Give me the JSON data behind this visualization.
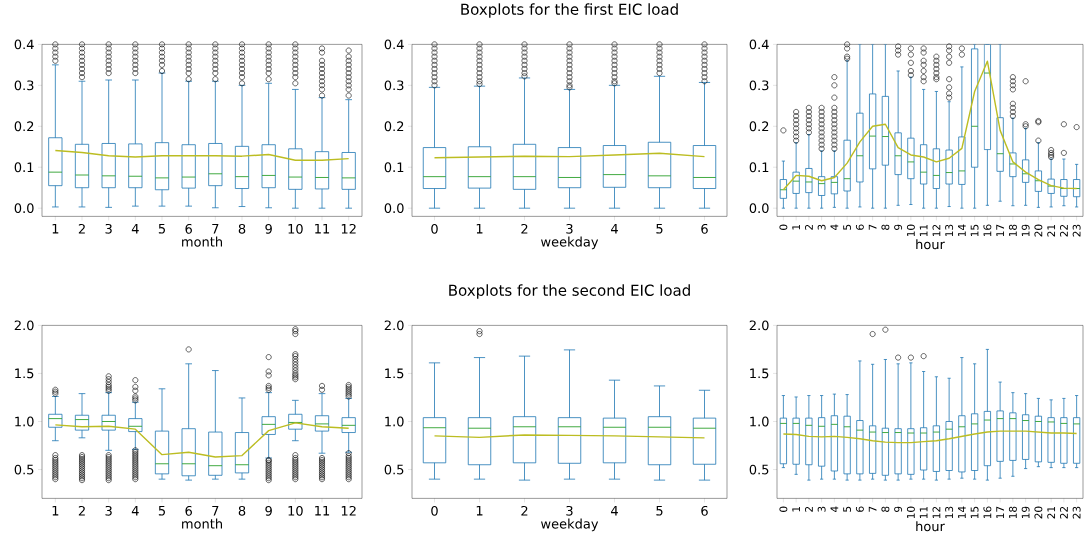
{
  "chart_data": [
    {
      "type": "box",
      "xlabel": "month",
      "categories": [
        "1",
        "2",
        "3",
        "4",
        "5",
        "6",
        "7",
        "8",
        "9",
        "10",
        "11",
        "12"
      ],
      "ylim": [
        -0.02,
        0.4
      ],
      "yticks": [
        {
          "value": 0,
          "label": "0.0"
        },
        {
          "value": 0.1,
          "label": "0.1"
        },
        {
          "value": 0.2,
          "label": "0.2"
        },
        {
          "value": 0.3,
          "label": "0.3"
        },
        {
          "value": 0.4,
          "label": "0.4"
        }
      ],
      "series": [
        {
          "color": "#1f77b4",
          "boxes": [
            {
              "low": 0.003,
              "q1": 0.055,
              "median": 0.088,
              "q3": 0.172,
              "high": 0.35,
              "outliers": [
                0.36,
                0.37,
                0.38,
                0.39,
                0.4
              ]
            },
            {
              "low": 0.003,
              "q1": 0.05,
              "median": 0.081,
              "q3": 0.156,
              "high": 0.31,
              "outliers": [
                0.32,
                0.33,
                0.34,
                0.35,
                0.36,
                0.37,
                0.38,
                0.39,
                0.4
              ]
            },
            {
              "low": 0.002,
              "q1": 0.05,
              "median": 0.079,
              "q3": 0.158,
              "high": 0.313,
              "outliers": [
                0.33,
                0.34,
                0.35,
                0.36,
                0.37,
                0.38,
                0.39,
                0.4
              ]
            },
            {
              "low": 0.005,
              "q1": 0.05,
              "median": 0.078,
              "q3": 0.157,
              "high": 0.313,
              "outliers": [
                0.33,
                0.34,
                0.35,
                0.36,
                0.37,
                0.38,
                0.39,
                0.4
              ]
            },
            {
              "low": 0.005,
              "q1": 0.045,
              "median": 0.074,
              "q3": 0.16,
              "high": 0.33,
              "outliers": [
                0.335,
                0.35,
                0.36,
                0.37,
                0.38,
                0.39,
                0.4
              ]
            },
            {
              "low": 0.005,
              "q1": 0.049,
              "median": 0.076,
              "q3": 0.155,
              "high": 0.31,
              "outliers": [
                0.315,
                0.33,
                0.34,
                0.35,
                0.36,
                0.37,
                0.38,
                0.39,
                0.4
              ]
            },
            {
              "low": 0.001,
              "q1": 0.055,
              "median": 0.084,
              "q3": 0.158,
              "high": 0.31,
              "outliers": [
                0.315,
                0.33,
                0.34,
                0.35,
                0.36,
                0.37,
                0.38,
                0.39,
                0.4
              ]
            },
            {
              "low": 0.004,
              "q1": 0.048,
              "median": 0.077,
              "q3": 0.151,
              "high": 0.3,
              "outliers": [
                0.305,
                0.32,
                0.33,
                0.34,
                0.35,
                0.36,
                0.37,
                0.38,
                0.39,
                0.4
              ]
            },
            {
              "low": 0.001,
              "q1": 0.05,
              "median": 0.08,
              "q3": 0.155,
              "high": 0.305,
              "outliers": [
                0.315,
                0.33,
                0.34,
                0.35,
                0.36,
                0.37,
                0.38,
                0.39,
                0.4
              ]
            },
            {
              "low": 0,
              "q1": 0.046,
              "median": 0.076,
              "q3": 0.145,
              "high": 0.29,
              "outliers": [
                0.305,
                0.32,
                0.33,
                0.34,
                0.35,
                0.36,
                0.37,
                0.38,
                0.39,
                0.4
              ]
            },
            {
              "low": 0,
              "q1": 0.047,
              "median": 0.075,
              "q3": 0.138,
              "high": 0.27,
              "outliers": [
                0.275,
                0.29,
                0.3,
                0.31,
                0.32,
                0.33,
                0.34,
                0.35,
                0.36,
                0.38,
                0.39
              ]
            },
            {
              "low": 0,
              "q1": 0.046,
              "median": 0.074,
              "q3": 0.136,
              "high": 0.265,
              "outliers": [
                0.275,
                0.29,
                0.3,
                0.31,
                0.32,
                0.33,
                0.34,
                0.35,
                0.36,
                0.37,
                0.385
              ]
            }
          ]
        },
        {
          "type": "line",
          "color": "#bcbd22",
          "values": [
            0.141,
            0.136,
            0.128,
            0.125,
            0.128,
            0.128,
            0.128,
            0.127,
            0.131,
            0.117,
            0.117,
            0.121
          ]
        }
      ]
    },
    {
      "type": "box",
      "title": "Boxplots for the first EIC load",
      "xlabel": "weekday",
      "categories": [
        "0",
        "1",
        "2",
        "3",
        "4",
        "5",
        "6"
      ],
      "ylim": [
        -0.02,
        0.4
      ],
      "yticks": [
        {
          "value": 0,
          "label": "0.0"
        },
        {
          "value": 0.1,
          "label": "0.1"
        },
        {
          "value": 0.2,
          "label": "0.2"
        },
        {
          "value": 0.3,
          "label": "0.3"
        },
        {
          "value": 0.4,
          "label": "0.4"
        }
      ],
      "series": [
        {
          "color": "#1f77b4",
          "boxes": [
            {
              "low": 0,
              "q1": 0.048,
              "median": 0.077,
              "q3": 0.148,
              "high": 0.295,
              "outliers": [
                0.3,
                0.31,
                0.32,
                0.33,
                0.34,
                0.35,
                0.36,
                0.37,
                0.38,
                0.39,
                0.4
              ]
            },
            {
              "low": 0,
              "q1": 0.049,
              "median": 0.077,
              "q3": 0.15,
              "high": 0.298,
              "outliers": [
                0.303,
                0.31,
                0.32,
                0.33,
                0.34,
                0.35,
                0.36,
                0.37,
                0.38,
                0.39,
                0.4
              ]
            },
            {
              "low": 0,
              "q1": 0.046,
              "median": 0.077,
              "q3": 0.156,
              "high": 0.318,
              "outliers": [
                0.322,
                0.33,
                0.34,
                0.35,
                0.36,
                0.37,
                0.38,
                0.39,
                0.4
              ]
            },
            {
              "low": 0,
              "q1": 0.05,
              "median": 0.075,
              "q3": 0.148,
              "high": 0.29,
              "outliers": [
                0.295,
                0.3,
                0.31,
                0.32,
                0.33,
                0.34,
                0.35,
                0.36,
                0.37,
                0.38,
                0.39,
                0.4
              ]
            },
            {
              "low": 0,
              "q1": 0.051,
              "median": 0.082,
              "q3": 0.153,
              "high": 0.3,
              "outliers": [
                0.305,
                0.31,
                0.32,
                0.33,
                0.34,
                0.35,
                0.36,
                0.37,
                0.38,
                0.39,
                0.4
              ]
            },
            {
              "low": 0,
              "q1": 0.05,
              "median": 0.079,
              "q3": 0.161,
              "high": 0.322,
              "outliers": [
                0.33,
                0.34,
                0.35,
                0.36,
                0.37,
                0.38,
                0.39,
                0.4
              ]
            },
            {
              "low": 0,
              "q1": 0.048,
              "median": 0.075,
              "q3": 0.153,
              "high": 0.307,
              "outliers": [
                0.31,
                0.32,
                0.33,
                0.34,
                0.35,
                0.36,
                0.37,
                0.38,
                0.39,
                0.4
              ]
            }
          ]
        },
        {
          "type": "line",
          "color": "#bcbd22",
          "values": [
            0.123,
            0.125,
            0.127,
            0.126,
            0.13,
            0.134,
            0.126
          ]
        }
      ]
    },
    {
      "type": "box",
      "xlabel": "hour",
      "categories": [
        "0",
        "1",
        "2",
        "3",
        "4",
        "5",
        "6",
        "7",
        "8",
        "9",
        "10",
        "11",
        "12",
        "13",
        "14",
        "15",
        "16",
        "17",
        "18",
        "19",
        "20",
        "21",
        "22",
        "23"
      ],
      "ylim": [
        -0.02,
        0.4
      ],
      "yticks": [
        {
          "value": 0,
          "label": "0.0"
        },
        {
          "value": 0.1,
          "label": "0.1"
        },
        {
          "value": 0.2,
          "label": "0.2"
        },
        {
          "value": 0.3,
          "label": "0.3"
        },
        {
          "value": 0.4,
          "label": "0.4"
        }
      ],
      "series": [
        {
          "color": "#1f77b4",
          "boxes": [
            {
              "low": 0,
              "q1": 0.024,
              "median": 0.045,
              "q3": 0.07,
              "high": 0.115,
              "outliers": [
                0.19
              ]
            },
            {
              "low": 0,
              "q1": 0.036,
              "median": 0.066,
              "q3": 0.088,
              "high": 0.16,
              "outliers": [
                0.165,
                0.175,
                0.185,
                0.195,
                0.205,
                0.215,
                0.225,
                0.235
              ]
            },
            {
              "low": 0,
              "q1": 0.038,
              "median": 0.064,
              "q3": 0.097,
              "high": 0.18,
              "outliers": [
                0.185,
                0.195,
                0.205,
                0.215,
                0.225,
                0.235,
                0.245
              ]
            },
            {
              "low": 0,
              "q1": 0.031,
              "median": 0.06,
              "q3": 0.077,
              "high": 0.14,
              "outliers": [
                0.145,
                0.155,
                0.165,
                0.175,
                0.185,
                0.195,
                0.205,
                0.215,
                0.225,
                0.235,
                0.245
              ]
            },
            {
              "low": 0.002,
              "q1": 0.035,
              "median": 0.063,
              "q3": 0.077,
              "high": 0.14,
              "outliers": [
                0.145,
                0.155,
                0.165,
                0.175,
                0.185,
                0.195,
                0.205,
                0.215,
                0.225,
                0.235,
                0.245,
                0.27,
                0.3,
                0.32
              ]
            },
            {
              "low": 0,
              "q1": 0.042,
              "median": 0.072,
              "q3": 0.166,
              "high": 0.36,
              "outliers": [
                0.365,
                0.37,
                0.39,
                0.4
              ]
            },
            {
              "low": 0.003,
              "q1": 0.064,
              "median": 0.128,
              "q3": 0.232,
              "high": 0.4
            },
            {
              "low": 0,
              "q1": 0.096,
              "median": 0.176,
              "q3": 0.279,
              "high": 0.4
            },
            {
              "low": 0,
              "q1": 0.105,
              "median": 0.175,
              "q3": 0.273,
              "high": 0.4
            },
            {
              "low": 0.007,
              "q1": 0.082,
              "median": 0.128,
              "q3": 0.184,
              "high": 0.335,
              "outliers": [
                0.375,
                0.385,
                0.395
              ]
            },
            {
              "low": 0.009,
              "q1": 0.072,
              "median": 0.113,
              "q3": 0.171,
              "high": 0.32,
              "outliers": [
                0.325,
                0.335,
                0.355,
                0.375,
                0.39
              ]
            },
            {
              "low": 0,
              "q1": 0.059,
              "median": 0.088,
              "q3": 0.155,
              "high": 0.29,
              "outliers": [
                0.31,
                0.32,
                0.335,
                0.35,
                0.36,
                0.38,
                0.39
              ]
            },
            {
              "low": 0,
              "q1": 0.048,
              "median": 0.08,
              "q3": 0.145,
              "high": 0.285,
              "outliers": [
                0.315,
                0.32,
                0.33,
                0.34,
                0.35,
                0.36,
                0.37
              ]
            },
            {
              "low": 0.004,
              "q1": 0.059,
              "median": 0.087,
              "q3": 0.142,
              "high": 0.26,
              "outliers": [
                0.27,
                0.28,
                0.295,
                0.315,
                0.355,
                0.37,
                0.385,
                0.395
              ]
            },
            {
              "low": 0,
              "q1": 0.058,
              "median": 0.091,
              "q3": 0.174,
              "high": 0.345,
              "outliers": [
                0.375,
                0.39
              ]
            },
            {
              "low": 0,
              "q1": 0.1,
              "median": 0.2,
              "q3": 0.389,
              "high": 0.4
            },
            {
              "low": 0.007,
              "q1": 0.143,
              "median": 0.33,
              "q3": 0.4,
              "high": 0.4
            },
            {
              "low": 0.017,
              "q1": 0.09,
              "median": 0.133,
              "q3": 0.221,
              "high": 0.4
            },
            {
              "low": 0.006,
              "q1": 0.077,
              "median": 0.108,
              "q3": 0.135,
              "high": 0.22,
              "outliers": [
                0.225,
                0.235,
                0.245,
                0.255,
                0.29,
                0.3,
                0.31,
                0.32
              ]
            },
            {
              "low": 0.007,
              "q1": 0.063,
              "median": 0.084,
              "q3": 0.118,
              "high": 0.195,
              "outliers": [
                0.2,
                0.205,
                0.31
              ]
            },
            {
              "low": 0.002,
              "q1": 0.041,
              "median": 0.067,
              "q3": 0.091,
              "high": 0.16,
              "outliers": [
                0.165,
                0.21,
                0.213
              ]
            },
            {
              "low": 0.003,
              "q1": 0.036,
              "median": 0.054,
              "q3": 0.071,
              "high": 0.12,
              "outliers": [
                0.125,
                0.13,
                0.135,
                0.142
              ]
            },
            {
              "low": 0.006,
              "q1": 0.029,
              "median": 0.048,
              "q3": 0.07,
              "high": 0.12,
              "outliers": [
                0.135,
                0.205
              ]
            },
            {
              "low": 0.003,
              "q1": 0.028,
              "median": 0.048,
              "q3": 0.07,
              "high": 0.107,
              "outliers": [
                0.198
              ]
            }
          ]
        },
        {
          "type": "line",
          "color": "#bcbd22",
          "values": [
            0.045,
            0.08,
            0.078,
            0.067,
            0.075,
            0.11,
            0.162,
            0.2,
            0.205,
            0.148,
            0.13,
            0.125,
            0.113,
            0.122,
            0.146,
            0.285,
            0.359,
            0.19,
            0.113,
            0.088,
            0.07,
            0.055,
            0.049,
            0.048
          ]
        }
      ]
    },
    {
      "type": "box",
      "xlabel": "month",
      "categories": [
        "1",
        "2",
        "3",
        "4",
        "5",
        "6",
        "7",
        "8",
        "9",
        "10",
        "11",
        "12"
      ],
      "ylim": [
        0.2,
        2.0
      ],
      "yticks": [
        {
          "value": 0.5,
          "label": "0.5"
        },
        {
          "value": 1.0,
          "label": "1.0"
        },
        {
          "value": 1.5,
          "label": "1.5"
        },
        {
          "value": 2.0,
          "label": "2.0"
        }
      ],
      "series": [
        {
          "color": "#1f77b4",
          "boxes": [
            {
              "low": 0.8,
              "q1": 0.94,
              "median": 1.03,
              "q3": 1.075,
              "high": 1.26,
              "outliers": [
                0.4,
                0.42,
                0.44,
                0.46,
                0.48,
                0.5,
                0.52,
                0.54,
                0.56,
                0.58,
                0.6,
                0.62,
                0.65,
                1.29,
                1.31,
                1.33
              ]
            },
            {
              "low": 0.83,
              "q1": 0.91,
              "median": 1.02,
              "q3": 1.065,
              "high": 1.29,
              "outliers": [
                0.39,
                0.41,
                0.43,
                0.45,
                0.47,
                0.49,
                0.51,
                0.53,
                0.55,
                0.57,
                0.59,
                0.61,
                0.63,
                0.65
              ]
            },
            {
              "low": 0.7,
              "q1": 0.91,
              "median": 1.0,
              "q3": 1.065,
              "high": 1.3,
              "outliers": [
                0.39,
                0.41,
                0.43,
                0.45,
                0.47,
                0.49,
                0.51,
                0.53,
                0.55,
                0.57,
                0.59,
                0.61,
                0.63,
                0.65,
                1.32,
                1.34,
                1.36,
                1.38,
                1.41,
                1.44,
                1.47
              ]
            },
            {
              "low": 0.71,
              "q1": 0.895,
              "median": 0.95,
              "q3": 1.03,
              "high": 1.2,
              "outliers": [
                0.4,
                0.42,
                0.44,
                0.46,
                0.48,
                0.5,
                0.52,
                0.54,
                0.56,
                0.58,
                0.6,
                0.62,
                0.64,
                0.66,
                0.68,
                0.7,
                1.22,
                1.24,
                1.26,
                1.32,
                1.36,
                1.43
              ]
            },
            {
              "low": 0.4,
              "q1": 0.455,
              "median": 0.56,
              "q3": 0.9,
              "high": 1.34
            },
            {
              "low": 0.39,
              "q1": 0.435,
              "median": 0.56,
              "q3": 0.925,
              "high": 1.6,
              "outliers": [
                1.75
              ]
            },
            {
              "low": 0.4,
              "q1": 0.44,
              "median": 0.54,
              "q3": 0.89,
              "high": 1.53
            },
            {
              "low": 0.4,
              "q1": 0.465,
              "median": 0.55,
              "q3": 0.885,
              "high": 1.245
            },
            {
              "low": 0.62,
              "q1": 0.865,
              "median": 0.97,
              "q3": 1.05,
              "high": 1.3,
              "outliers": [
                0.39,
                0.41,
                0.43,
                0.45,
                0.47,
                0.49,
                0.51,
                0.53,
                0.55,
                0.57,
                0.59,
                0.6,
                1.33,
                1.35,
                1.37,
                1.48,
                1.52,
                1.67
              ]
            },
            {
              "low": 0.8,
              "q1": 0.92,
              "median": 0.99,
              "q3": 1.075,
              "high": 1.22,
              "outliers": [
                0.4,
                0.42,
                0.44,
                0.46,
                0.48,
                0.5,
                0.52,
                0.54,
                0.56,
                0.58,
                0.6,
                0.62,
                0.65,
                1.44,
                1.46,
                1.48,
                1.5,
                1.53,
                1.56,
                1.59,
                1.62,
                1.65,
                1.68,
                1.7,
                1.91,
                1.94,
                1.96
              ]
            },
            {
              "low": 0.67,
              "q1": 0.9,
              "median": 0.975,
              "q3": 1.06,
              "high": 1.29,
              "outliers": [
                0.4,
                0.42,
                0.44,
                0.46,
                0.48,
                0.5,
                0.52,
                0.54,
                0.56,
                0.58,
                0.6,
                0.62,
                1.33,
                1.37
              ]
            },
            {
              "low": 0.68,
              "q1": 0.885,
              "median": 0.96,
              "q3": 1.04,
              "high": 1.24,
              "outliers": [
                0.4,
                0.42,
                0.44,
                0.46,
                0.48,
                0.5,
                0.52,
                0.54,
                0.56,
                0.58,
                0.6,
                0.62,
                0.64,
                0.67,
                1.26,
                1.28,
                1.3,
                1.32,
                1.34,
                1.36,
                1.38
              ]
            }
          ]
        },
        {
          "type": "line",
          "color": "#bcbd22",
          "values": [
            0.965,
            0.945,
            0.95,
            0.92,
            0.655,
            0.68,
            0.63,
            0.645,
            0.905,
            0.985,
            0.945,
            0.93
          ]
        }
      ]
    },
    {
      "type": "box",
      "title": "Boxplots for the second EIC load",
      "xlabel": "weekday",
      "categories": [
        "0",
        "1",
        "2",
        "3",
        "4",
        "5",
        "6"
      ],
      "ylim": [
        0.2,
        2.0
      ],
      "yticks": [
        {
          "value": 0.5,
          "label": "0.5"
        },
        {
          "value": 1.0,
          "label": "1.0"
        },
        {
          "value": 1.5,
          "label": "1.5"
        },
        {
          "value": 2.0,
          "label": "2.0"
        }
      ],
      "series": [
        {
          "color": "#1f77b4",
          "boxes": [
            {
              "low": 0.4,
              "q1": 0.57,
              "median": 0.935,
              "q3": 1.04,
              "high": 1.61
            },
            {
              "low": 0.4,
              "q1": 0.55,
              "median": 0.93,
              "q3": 1.04,
              "high": 1.665,
              "outliers": [
                1.91,
                1.94
              ]
            },
            {
              "low": 0.39,
              "q1": 0.57,
              "median": 0.945,
              "q3": 1.05,
              "high": 1.68
            },
            {
              "low": 0.4,
              "q1": 0.565,
              "median": 0.945,
              "q3": 1.04,
              "high": 1.745
            },
            {
              "low": 0.4,
              "q1": 0.57,
              "median": 0.94,
              "q3": 1.035,
              "high": 1.43
            },
            {
              "low": 0.39,
              "q1": 0.55,
              "median": 0.94,
              "q3": 1.05,
              "high": 1.37
            },
            {
              "low": 0.39,
              "q1": 0.555,
              "median": 0.93,
              "q3": 1.035,
              "high": 1.325
            }
          ]
        },
        {
          "type": "line",
          "color": "#bcbd22",
          "values": [
            0.85,
            0.835,
            0.86,
            0.855,
            0.85,
            0.84,
            0.83
          ]
        }
      ]
    },
    {
      "type": "box",
      "xlabel": "hour",
      "categories": [
        "0",
        "1",
        "2",
        "3",
        "4",
        "5",
        "6",
        "7",
        "8",
        "9",
        "10",
        "11",
        "12",
        "13",
        "14",
        "15",
        "16",
        "17",
        "18",
        "19",
        "20",
        "21",
        "22",
        "23"
      ],
      "ylim": [
        0.2,
        2.0
      ],
      "yticks": [
        {
          "value": 0.5,
          "label": "0.5"
        },
        {
          "value": 1.0,
          "label": "1.0"
        },
        {
          "value": 1.5,
          "label": "1.5"
        },
        {
          "value": 2.0,
          "label": "2.0"
        }
      ],
      "series": [
        {
          "color": "#1f77b4",
          "boxes": [
            {
              "low": 0.52,
              "q1": 0.56,
              "median": 0.98,
              "q3": 1.035,
              "high": 1.27
            },
            {
              "low": 0.45,
              "q1": 0.555,
              "median": 0.98,
              "q3": 1.035,
              "high": 1.255
            },
            {
              "low": 0.39,
              "q1": 0.55,
              "median": 0.96,
              "q3": 1.035,
              "high": 1.27
            },
            {
              "low": 0.4,
              "q1": 0.535,
              "median": 0.95,
              "q3": 1.04,
              "high": 1.27
            },
            {
              "low": 0.4,
              "q1": 0.485,
              "median": 0.97,
              "q3": 1.06,
              "high": 1.285
            },
            {
              "low": 0.39,
              "q1": 0.455,
              "median": 0.945,
              "q3": 1.055,
              "high": 1.28
            },
            {
              "low": 0.39,
              "q1": 0.455,
              "median": 0.91,
              "q3": 1.01,
              "high": 1.63
            },
            {
              "low": 0.4,
              "q1": 0.46,
              "median": 0.89,
              "q3": 0.955,
              "high": 1.595,
              "outliers": [
                1.91
              ]
            },
            {
              "low": 0.39,
              "q1": 0.44,
              "median": 0.885,
              "q3": 0.93,
              "high": 1.645,
              "outliers": [
                1.955
              ]
            },
            {
              "low": 0.39,
              "q1": 0.455,
              "median": 0.885,
              "q3": 0.925,
              "high": 1.6,
              "outliers": [
                1.665
              ]
            },
            {
              "low": 0.4,
              "q1": 0.45,
              "median": 0.88,
              "q3": 0.925,
              "high": 1.61,
              "outliers": [
                1.665
              ]
            },
            {
              "low": 0.4,
              "q1": 0.495,
              "median": 0.88,
              "q3": 0.935,
              "high": 1.52,
              "outliers": [
                1.68
              ]
            },
            {
              "low": 0.39,
              "q1": 0.48,
              "median": 0.89,
              "q3": 0.955,
              "high": 1.465
            },
            {
              "low": 0.4,
              "q1": 0.49,
              "median": 0.92,
              "q3": 1.0,
              "high": 1.45
            },
            {
              "low": 0.41,
              "q1": 0.475,
              "median": 0.945,
              "q3": 1.06,
              "high": 1.665
            },
            {
              "low": 0.4,
              "q1": 0.49,
              "median": 0.975,
              "q3": 1.08,
              "high": 1.6
            },
            {
              "low": 0.39,
              "q1": 0.54,
              "median": 1.015,
              "q3": 1.105,
              "high": 1.75
            },
            {
              "low": 0.41,
              "q1": 0.585,
              "median": 1.03,
              "q3": 1.11,
              "high": 1.41
            },
            {
              "low": 0.43,
              "q1": 0.595,
              "median": 1.03,
              "q3": 1.09,
              "high": 1.3
            },
            {
              "low": 0.51,
              "q1": 0.605,
              "median": 1.01,
              "q3": 1.07,
              "high": 1.29
            },
            {
              "low": 0.53,
              "q1": 0.58,
              "median": 1.0,
              "q3": 1.055,
              "high": 1.24
            },
            {
              "low": 0.52,
              "q1": 0.575,
              "median": 0.995,
              "q3": 1.04,
              "high": 1.225
            },
            {
              "low": 0.52,
              "q1": 0.565,
              "median": 0.98,
              "q3": 1.04,
              "high": 1.24
            },
            {
              "low": 0.52,
              "q1": 0.565,
              "median": 0.975,
              "q3": 1.04,
              "high": 1.27
            }
          ]
        },
        {
          "type": "line",
          "color": "#bcbd22",
          "values": [
            0.87,
            0.865,
            0.845,
            0.84,
            0.845,
            0.835,
            0.82,
            0.8,
            0.785,
            0.78,
            0.78,
            0.79,
            0.8,
            0.82,
            0.845,
            0.87,
            0.89,
            0.9,
            0.9,
            0.9,
            0.89,
            0.88,
            0.88,
            0.875
          ]
        }
      ]
    }
  ]
}
